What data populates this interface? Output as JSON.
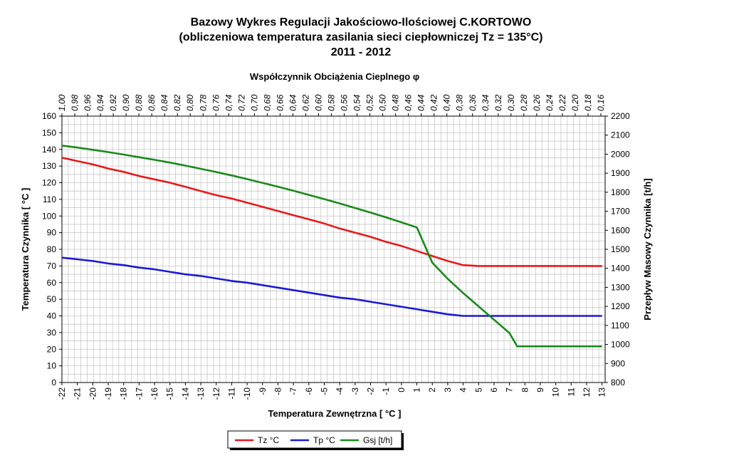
{
  "chart_data": {
    "type": "line",
    "title_lines": [
      "Bazowy  Wykres Regulacji Jakościowo-Ilościowej C.KORTOWO",
      "(obliczeniowa temperatura zasilania sieci ciepłowniczej Tz = 135°C)",
      "2011 - 2012"
    ],
    "top_axis_title": "Współczynnik Obciążenia Cieplnego φ",
    "xlabel": "Temperatura Zewnętrzna [ °C ]",
    "ylabel_left": "Temperatura Czynnika [ °C ]",
    "ylabel_right": "Przepływ Masowy Czynnika [t/h]",
    "x": [
      -22,
      -21,
      -20,
      -19,
      -18,
      -17,
      -16,
      -15,
      -14,
      -13,
      -12,
      -11,
      -10,
      -9,
      -8,
      -7,
      -6,
      -5,
      -4,
      -3,
      -2,
      -1,
      0,
      1,
      2,
      3,
      4,
      5,
      6,
      7,
      8,
      9,
      10,
      11,
      12,
      13
    ],
    "x_tick_labels": [
      "-22",
      "-21",
      "-20",
      "-19",
      "-18",
      "-17",
      "-16",
      "-15",
      "-14",
      "-13",
      "-12",
      "-11",
      "-10",
      "-9",
      "-8",
      "-7",
      "-6",
      "-5",
      "-4",
      "-3",
      "-2",
      "-1",
      "0",
      "1",
      "2",
      "3",
      "4",
      "5",
      "6",
      "7",
      "8",
      "9",
      "10",
      "11",
      "12",
      "13"
    ],
    "xlim": [
      -22,
      13.2
    ],
    "ylim_left": [
      0,
      160
    ],
    "y_ticks_left": [
      "0",
      "10",
      "20",
      "30",
      "40",
      "50",
      "60",
      "70",
      "80",
      "90",
      "100",
      "110",
      "120",
      "130",
      "140",
      "150",
      "160"
    ],
    "ylim_right": [
      800,
      2200
    ],
    "y_ticks_right": [
      "800",
      "900",
      "1000",
      "1100",
      "1200",
      "1300",
      "1400",
      "1500",
      "1600",
      "1700",
      "1800",
      "1900",
      "2000",
      "2100",
      "2200"
    ],
    "top_ticks": [
      "1,00",
      "0,98",
      "0,96",
      "0,94",
      "0,92",
      "0,90",
      "0,88",
      "0,86",
      "0,84",
      "0,82",
      "0,80",
      "0,78",
      "0,76",
      "0,74",
      "0,72",
      "0,70",
      "0,68",
      "0,66",
      "0,64",
      "0,62",
      "0,60",
      "0,58",
      "0,56",
      "0,54",
      "0,52",
      "0,50",
      "0,48",
      "0,46",
      "0,44",
      "0,42",
      "0,40",
      "0,38",
      "0,36",
      "0,34",
      "0,32",
      "0,30",
      "0,28",
      "0,26",
      "0,24",
      "0,22",
      "0,20",
      "0,18",
      "0,16"
    ],
    "grid": true,
    "legend_position": "bottom-center",
    "series": [
      {
        "name": "Tz °C",
        "axis": "left",
        "color": "#e8191b",
        "x": [
          -22,
          -21,
          -20,
          -19,
          -18,
          -17,
          -16,
          -15,
          -14,
          -13,
          -12,
          -11,
          -10,
          -9,
          -8,
          -7,
          -6,
          -5,
          -4,
          -3,
          -2,
          -1,
          0,
          1,
          2,
          3,
          4,
          5,
          6,
          7,
          7.5,
          8,
          9,
          10,
          11,
          12,
          13
        ],
        "values": [
          135,
          133,
          131,
          128.5,
          126.5,
          124,
          122,
          120,
          117.5,
          115,
          112.5,
          110.5,
          108,
          105.5,
          103,
          100.5,
          98,
          95.5,
          92.5,
          90,
          87.5,
          84.5,
          82,
          79,
          76,
          73,
          70.5,
          70,
          70,
          70,
          70,
          70,
          70,
          70,
          70,
          70,
          70
        ]
      },
      {
        "name": "Tp °C",
        "axis": "left",
        "color": "#1a1ad4",
        "x": [
          -22,
          -21,
          -20,
          -19,
          -18,
          -17,
          -16,
          -15,
          -14,
          -13,
          -12,
          -11,
          -10,
          -9,
          -8,
          -7,
          -6,
          -5,
          -4,
          -3,
          -2,
          -1,
          0,
          1,
          2,
          3,
          4,
          5,
          6,
          7,
          7.5,
          8,
          9,
          10,
          11,
          12,
          13
        ],
        "values": [
          75,
          74,
          73,
          71.5,
          70.5,
          69,
          68,
          66.5,
          65,
          64,
          62.5,
          61,
          60,
          58.5,
          57,
          55.5,
          54,
          52.5,
          51,
          50,
          48.5,
          47,
          45.5,
          44,
          42.5,
          41,
          40,
          40,
          40,
          40,
          40,
          40,
          40,
          40,
          40,
          40,
          40
        ]
      },
      {
        "name": "Gsj [t/h]",
        "axis": "right",
        "color": "#1a8a1a",
        "x": [
          -22,
          -21,
          -20,
          -19,
          -18,
          -17,
          -16,
          -15,
          -14,
          -13,
          -12,
          -11,
          -10,
          -9,
          -8,
          -7,
          -6,
          -5,
          -4,
          -3,
          -2,
          -1,
          0,
          1,
          2,
          3,
          4,
          5,
          6,
          7,
          7.5,
          8,
          9,
          10,
          11,
          12,
          13
        ],
        "values": [
          2045,
          2035,
          2023,
          2011,
          1998,
          1984,
          1970,
          1956,
          1940,
          1923,
          1906,
          1888,
          1869,
          1849,
          1829,
          1808,
          1786,
          1764,
          1741,
          1717,
          1693,
          1668,
          1642,
          1615,
          1430,
          1345,
          1270,
          1200,
          1130,
          1060,
          990,
          990,
          990,
          990,
          990,
          990,
          990
        ]
      }
    ]
  }
}
